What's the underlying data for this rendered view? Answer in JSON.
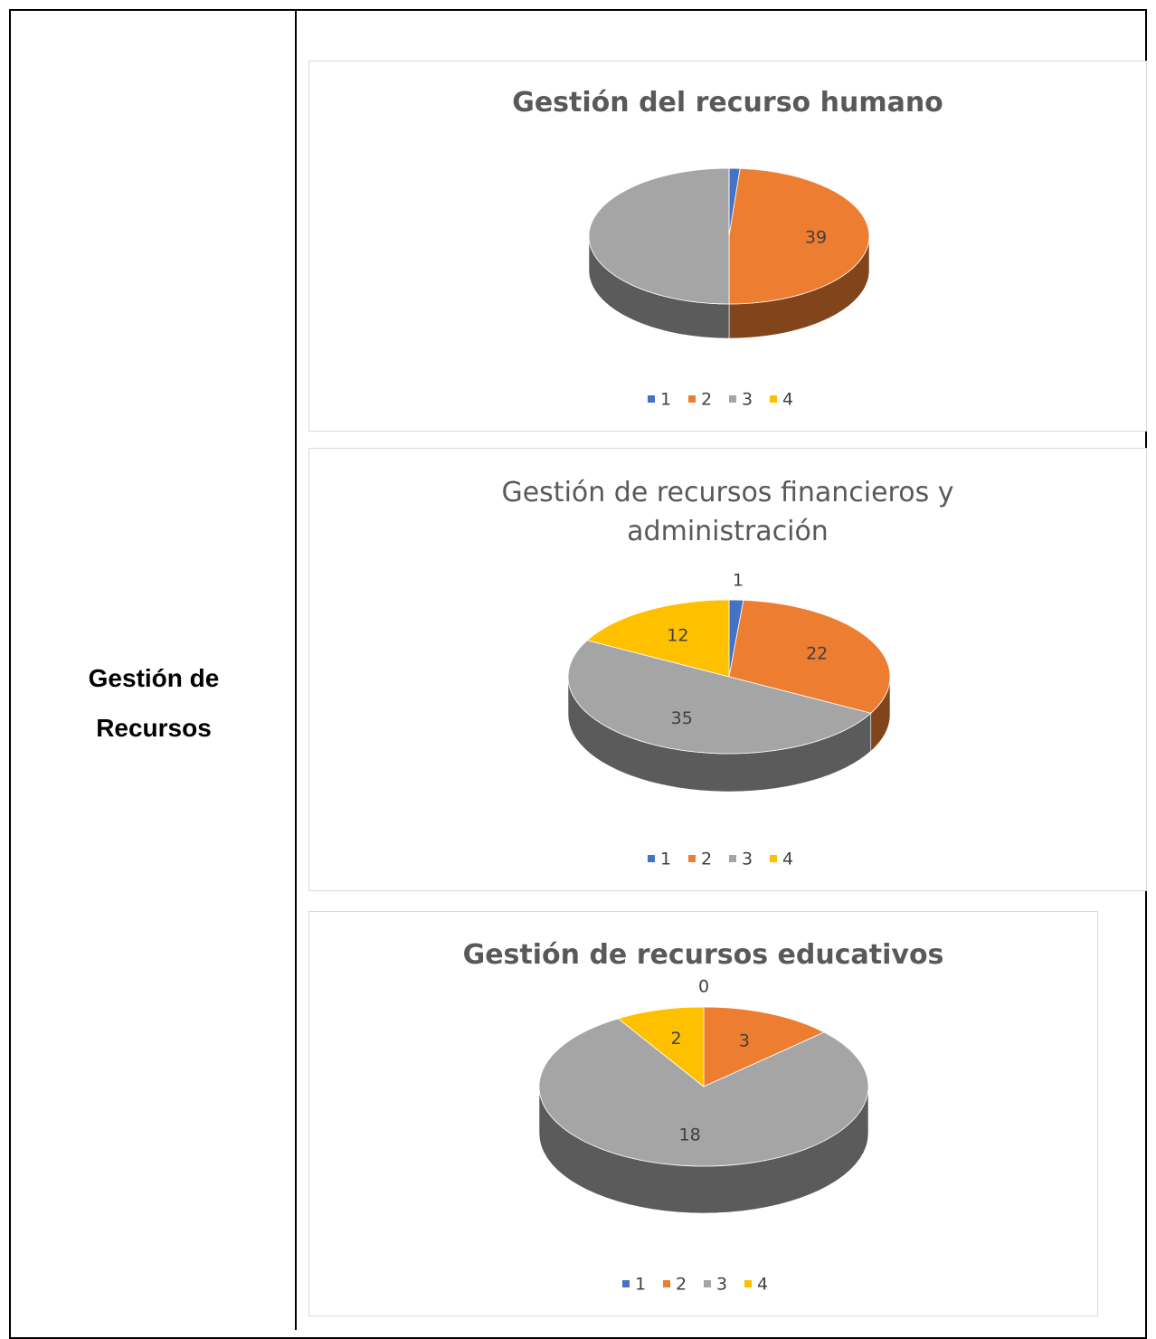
{
  "table": {
    "row_label": "Gestión de Recursos"
  },
  "chart_data": [
    {
      "type": "pie",
      "title": "Gestión del recurso humano",
      "categories": [
        "1",
        "2",
        "3",
        "4"
      ],
      "values": [
        1,
        39,
        40,
        0
      ],
      "labeled": [
        false,
        true,
        false,
        false
      ],
      "colors": [
        "#4472c4",
        "#ed7d31",
        "#a5a5a5",
        "#ffc000"
      ]
    },
    {
      "type": "pie",
      "title": "Gestión de recursos financieros y administración",
      "categories": [
        "1",
        "2",
        "3",
        "4"
      ],
      "values": [
        1,
        22,
        35,
        12
      ],
      "labeled": [
        true,
        true,
        true,
        true
      ],
      "colors": [
        "#4472c4",
        "#ed7d31",
        "#a5a5a5",
        "#ffc000"
      ]
    },
    {
      "type": "pie",
      "title": "Gestión de recursos educativos",
      "categories": [
        "1",
        "2",
        "3",
        "4"
      ],
      "values": [
        0,
        3,
        18,
        2
      ],
      "labeled": [
        true,
        true,
        true,
        true
      ],
      "colors": [
        "#4472c4",
        "#ed7d31",
        "#a5a5a5",
        "#ffc000"
      ]
    }
  ]
}
